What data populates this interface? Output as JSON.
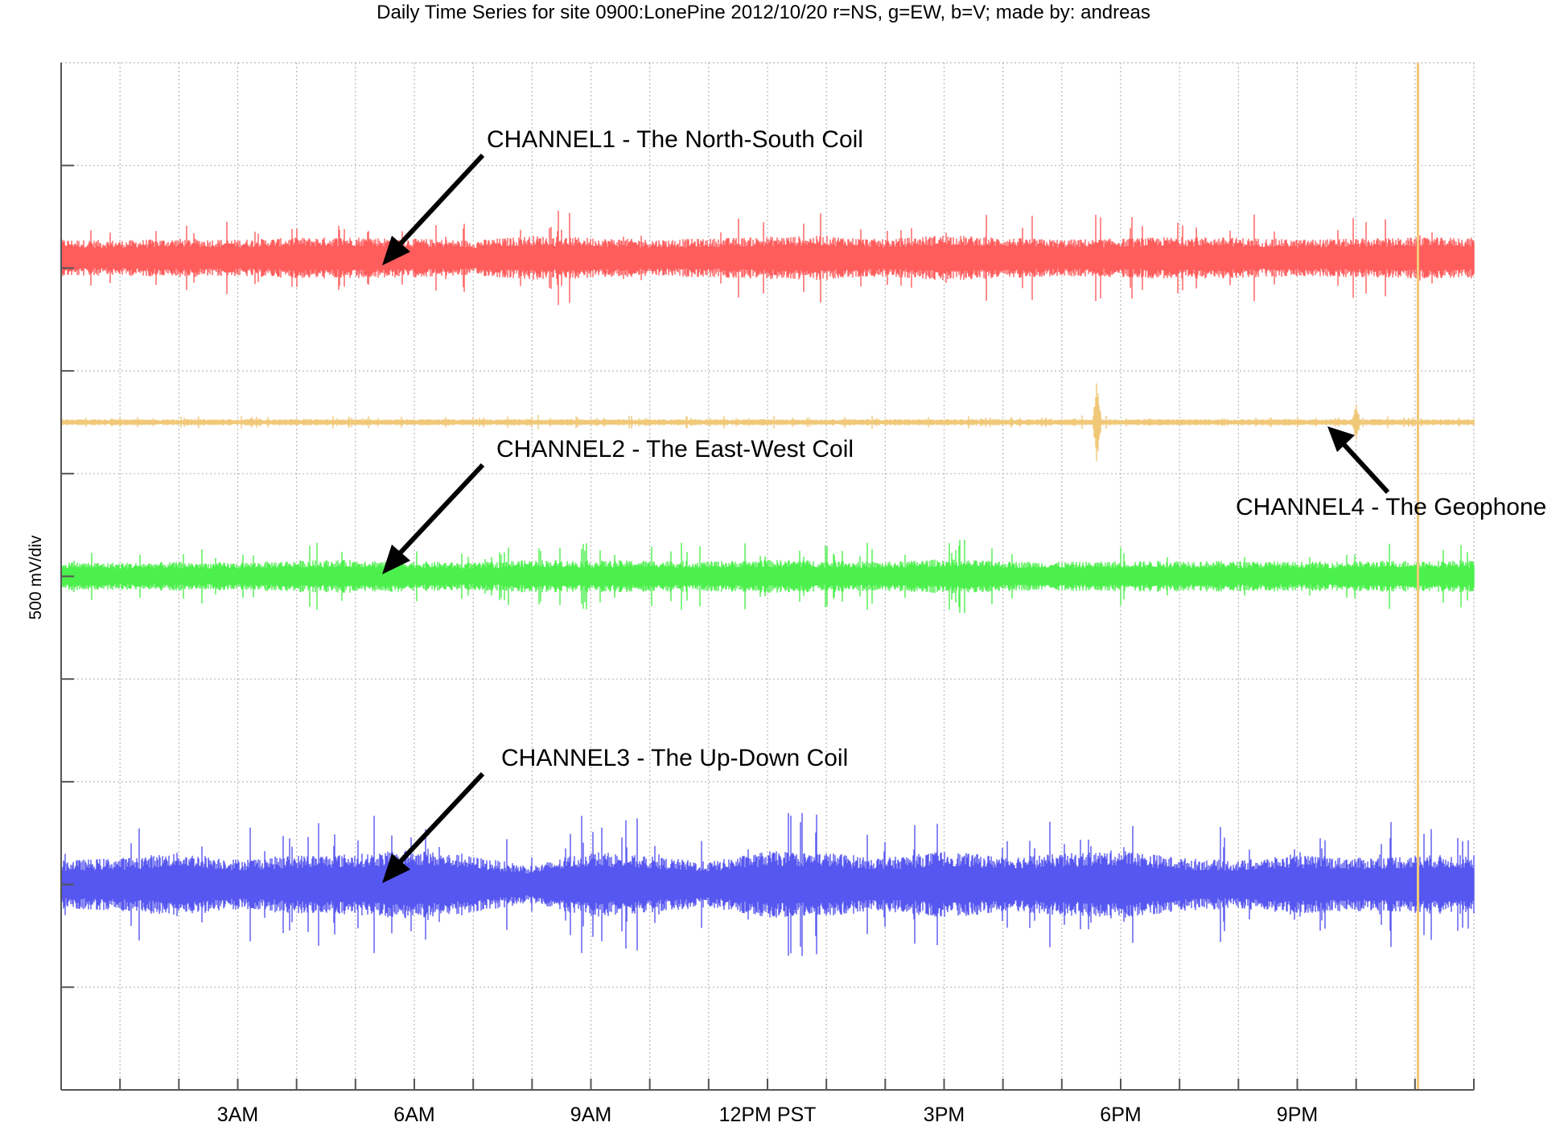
{
  "chart_data": {
    "type": "line",
    "title": "Daily Time Series for site 0900:LonePine 2012/10/20  r=NS, g=EW, b=V; made by: andreas",
    "ylabel": "500 mV/div",
    "xlabel": "",
    "x_unit": "hours",
    "xlim": [
      0,
      24
    ],
    "ylim": [
      0,
      10
    ],
    "grid": true,
    "x_ticks": [
      {
        "value": 3,
        "label": "3AM"
      },
      {
        "value": 6,
        "label": "6AM"
      },
      {
        "value": 9,
        "label": "9AM"
      },
      {
        "value": 12,
        "label": "12PM PST"
      },
      {
        "value": 15,
        "label": "3PM"
      },
      {
        "value": 18,
        "label": "6PM"
      },
      {
        "value": 21,
        "label": "9PM"
      }
    ],
    "series": [
      {
        "key": "ns",
        "color": "#ff5c5c",
        "baseline_div": 8.1,
        "half_amplitude_div": 0.18,
        "envelope": [
          1.0,
          0.95,
          1.05,
          1.0,
          1.1,
          1.15,
          1.05,
          0.95,
          1.2,
          1.1,
          1.0,
          1.05,
          1.15,
          1.2,
          1.0,
          1.25,
          1.1,
          1.0,
          1.05,
          1.15,
          1.1,
          1.0,
          1.05,
          1.1
        ]
      },
      {
        "key": "geophone",
        "color": "#f0c878",
        "baseline_div": 6.5,
        "half_amplitude_div": 0.03,
        "envelope": [
          1,
          1,
          1,
          1,
          1,
          1,
          1,
          1,
          1,
          1,
          1,
          1,
          1,
          1,
          1,
          1,
          1,
          1,
          1,
          1,
          1,
          1,
          1,
          1
        ]
      },
      {
        "key": "ew",
        "color": "#4cf04c",
        "baseline_div": 5.0,
        "half_amplitude_div": 0.14,
        "envelope": [
          1.0,
          0.95,
          1.0,
          0.95,
          1.1,
          1.15,
          1.05,
          0.95,
          1.15,
          1.1,
          1.1,
          1.05,
          1.15,
          1.1,
          1.0,
          1.2,
          1.05,
          1.0,
          1.05,
          1.1,
          1.05,
          1.0,
          1.05,
          1.1
        ]
      },
      {
        "key": "ud",
        "color": "#5656f0",
        "baseline_div": 2.0,
        "half_amplitude_div": 0.26,
        "envelope": [
          0.9,
          1.0,
          1.2,
          0.95,
          1.1,
          1.15,
          1.3,
          1.05,
          0.7,
          1.25,
          1.05,
          0.85,
          1.25,
          1.2,
          1.0,
          1.25,
          1.05,
          1.15,
          1.3,
          1.0,
          0.9,
          1.1,
          1.0,
          1.1
        ]
      }
    ],
    "events": [
      {
        "series": "geophone",
        "x": 17.6,
        "half_amplitude_div": 0.45
      },
      {
        "series": "geophone",
        "x": 22.0,
        "half_amplitude_div": 0.2
      }
    ],
    "vertical_markers": [
      {
        "x": 23.05,
        "color": "#f0c878",
        "from_div": 0,
        "to_div": 10
      }
    ],
    "annotations": [
      {
        "key": "ann_ns",
        "text": "CHANNEL1 - The North-South Coil"
      },
      {
        "key": "ann_ew",
        "text": "CHANNEL2 - The East-West Coil"
      },
      {
        "key": "ann_ud",
        "text": "CHANNEL3 - The Up-Down Coil"
      },
      {
        "key": "ann_geo",
        "text": "CHANNEL4 - The Geophone"
      }
    ]
  }
}
